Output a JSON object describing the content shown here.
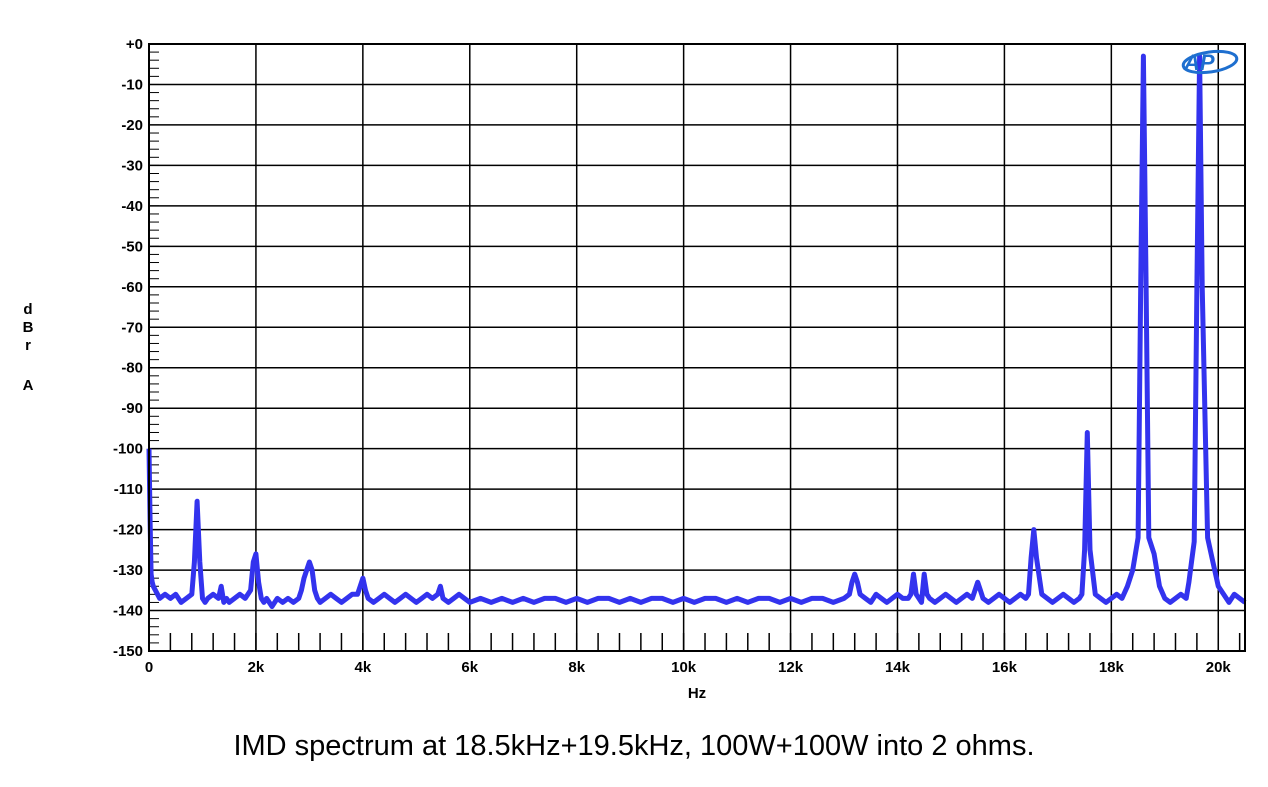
{
  "caption": "IMD spectrum at 18.5kHz+19.5kHz, 100W+100W into 2 ohms.",
  "logo_text": "AP",
  "chart_data": {
    "type": "line",
    "title": "",
    "xlabel": "Hz",
    "ylabel": [
      "d",
      "B",
      "r",
      "",
      "A"
    ],
    "xlim": [
      0,
      20500
    ],
    "ylim": [
      -150,
      0
    ],
    "x_ticks": [
      0,
      2000,
      4000,
      6000,
      8000,
      10000,
      12000,
      14000,
      16000,
      18000,
      20000
    ],
    "x_tick_labels": [
      "0",
      "2k",
      "4k",
      "6k",
      "8k",
      "10k",
      "12k",
      "14k",
      "16k",
      "18k",
      "20k"
    ],
    "y_ticks": [
      0,
      -10,
      -20,
      -30,
      -40,
      -50,
      -60,
      -70,
      -80,
      -90,
      -100,
      -110,
      -120,
      -130,
      -140,
      -150
    ],
    "y_tick_labels": [
      "+0",
      "-10",
      "-20",
      "-30",
      "-40",
      "-50",
      "-60",
      "-70",
      "-80",
      "-90",
      "-100",
      "-110",
      "-120",
      "-130",
      "-140",
      "-150"
    ],
    "grid": true,
    "color": "#3333ee",
    "series": [
      {
        "x": [
          0,
          20,
          40,
          60,
          80,
          120,
          200,
          300,
          400,
          500,
          600,
          700,
          800,
          850,
          900,
          950,
          1000,
          1050,
          1100,
          1200,
          1300,
          1350,
          1400,
          1450,
          1500,
          1600,
          1700,
          1800,
          1900,
          1950,
          2000,
          2050,
          2100,
          2150,
          2200,
          2300,
          2400,
          2500,
          2600,
          2700,
          2800,
          2850,
          2900,
          2950,
          3000,
          3050,
          3100,
          3150,
          3200,
          3300,
          3400,
          3500,
          3600,
          3700,
          3800,
          3900,
          3950,
          4000,
          4050,
          4100,
          4200,
          4300,
          4400,
          4500,
          4600,
          4700,
          4800,
          4900,
          5000,
          5100,
          5200,
          5300,
          5400,
          5450,
          5500,
          5600,
          5700,
          5800,
          5900,
          6000,
          6200,
          6400,
          6600,
          6800,
          7000,
          7200,
          7400,
          7600,
          7800,
          8000,
          8200,
          8400,
          8600,
          8800,
          9000,
          9200,
          9400,
          9600,
          9800,
          10000,
          10200,
          10400,
          10600,
          10800,
          11000,
          11200,
          11400,
          11600,
          11800,
          12000,
          12200,
          12400,
          12600,
          12800,
          13000,
          13100,
          13150,
          13200,
          13250,
          13300,
          13400,
          13500,
          13600,
          13700,
          13800,
          13900,
          14000,
          14100,
          14200,
          14250,
          14300,
          14350,
          14400,
          14450,
          14500,
          14550,
          14600,
          14700,
          14800,
          14900,
          15000,
          15100,
          15200,
          15300,
          15400,
          15450,
          15500,
          15550,
          15600,
          15700,
          15800,
          15900,
          16000,
          16100,
          16200,
          16300,
          16400,
          16450,
          16500,
          16550,
          16600,
          16700,
          16800,
          16900,
          17000,
          17100,
          17200,
          17300,
          17400,
          17450,
          17500,
          17550,
          17600,
          17700,
          17800,
          17900,
          18000,
          18100,
          18200,
          18300,
          18400,
          18450,
          18500,
          18550,
          18600,
          18650,
          18700,
          18800,
          18900,
          19000,
          19100,
          19200,
          19300,
          19400,
          19450,
          19500,
          19550,
          19600,
          19650,
          19700,
          19800,
          19900,
          20000,
          20100,
          20200,
          20300,
          20400,
          20500
        ],
        "y": [
          -100,
          -118,
          -131,
          -133,
          -134,
          -135,
          -137,
          -136,
          -137,
          -136,
          -138,
          -137,
          -136,
          -128,
          -113,
          -128,
          -137,
          -138,
          -137,
          -136,
          -137,
          -134,
          -138,
          -137,
          -138,
          -137,
          -136,
          -137,
          -135,
          -128,
          -126,
          -133,
          -137,
          -138,
          -137,
          -139,
          -137,
          -138,
          -137,
          -138,
          -137,
          -135,
          -132,
          -130,
          -128,
          -130,
          -135,
          -137,
          -138,
          -137,
          -136,
          -137,
          -138,
          -137,
          -136,
          -136,
          -134,
          -132,
          -135,
          -137,
          -138,
          -137,
          -136,
          -137,
          -138,
          -137,
          -136,
          -137,
          -138,
          -137,
          -136,
          -137,
          -136,
          -134,
          -137,
          -138,
          -137,
          -136,
          -137,
          -138,
          -137,
          -138,
          -137,
          -138,
          -137,
          -138,
          -137,
          -137,
          -138,
          -137,
          -138,
          -137,
          -137,
          -138,
          -137,
          -138,
          -137,
          -137,
          -138,
          -137,
          -138,
          -137,
          -137,
          -138,
          -137,
          -138,
          -137,
          -137,
          -138,
          -137,
          -138,
          -137,
          -137,
          -138,
          -137,
          -136,
          -133,
          -131,
          -133,
          -136,
          -137,
          -138,
          -136,
          -137,
          -138,
          -137,
          -136,
          -137,
          -137,
          -136,
          -131,
          -136,
          -137,
          -138,
          -131,
          -136,
          -137,
          -138,
          -137,
          -136,
          -137,
          -138,
          -137,
          -136,
          -137,
          -135,
          -133,
          -135,
          -137,
          -138,
          -137,
          -136,
          -137,
          -138,
          -137,
          -136,
          -137,
          -136,
          -127,
          -120,
          -127,
          -136,
          -137,
          -138,
          -137,
          -136,
          -137,
          -138,
          -137,
          -136,
          -125,
          -96,
          -125,
          -136,
          -137,
          -138,
          -137,
          -136,
          -137,
          -134,
          -130,
          -126,
          -122,
          -60,
          -3,
          -60,
          -122,
          -126,
          -134,
          -137,
          -138,
          -137,
          -136,
          -137,
          -133,
          -128,
          -123,
          -60,
          -3,
          -60,
          -122,
          -128,
          -134,
          -136,
          -138,
          -136,
          -137,
          -138
        ]
      }
    ]
  }
}
